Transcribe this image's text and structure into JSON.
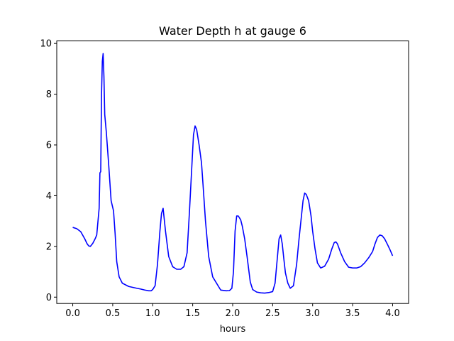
{
  "chart_data": {
    "type": "line",
    "title": "Water Depth h at gauge 6",
    "xlabel": "hours",
    "ylabel": "",
    "xlim": [
      -0.2,
      4.2
    ],
    "ylim": [
      -0.25,
      10.1
    ],
    "xticks": [
      0.0,
      0.5,
      1.0,
      1.5,
      2.0,
      2.5,
      3.0,
      3.5,
      4.0
    ],
    "xtick_labels": [
      "0.0",
      "0.5",
      "1.0",
      "1.5",
      "2.0",
      "2.5",
      "3.0",
      "3.5",
      "4.0"
    ],
    "yticks": [
      0,
      2,
      4,
      6,
      8,
      10
    ],
    "ytick_labels": [
      "0",
      "2",
      "4",
      "6",
      "8",
      "10"
    ],
    "grid": false,
    "series": [
      {
        "color": "#0000ff",
        "x": [
          0.0,
          0.05,
          0.1,
          0.15,
          0.18,
          0.2,
          0.22,
          0.25,
          0.28,
          0.3,
          0.33,
          0.34,
          0.35,
          0.36,
          0.37,
          0.38,
          0.39,
          0.4,
          0.42,
          0.45,
          0.48,
          0.51,
          0.53,
          0.55,
          0.58,
          0.62,
          0.7,
          0.8,
          0.85,
          0.9,
          0.95,
          0.98,
          1.0,
          1.03,
          1.06,
          1.09,
          1.11,
          1.13,
          1.16,
          1.2,
          1.25,
          1.3,
          1.35,
          1.39,
          1.43,
          1.46,
          1.49,
          1.51,
          1.53,
          1.55,
          1.58,
          1.61,
          1.63,
          1.66,
          1.7,
          1.75,
          1.85,
          1.92,
          1.96,
          1.99,
          2.01,
          2.03,
          2.05,
          2.07,
          2.1,
          2.12,
          2.15,
          2.18,
          2.2,
          2.22,
          2.25,
          2.3,
          2.35,
          2.4,
          2.45,
          2.5,
          2.53,
          2.56,
          2.58,
          2.6,
          2.62,
          2.64,
          2.66,
          2.69,
          2.72,
          2.76,
          2.8,
          2.83,
          2.86,
          2.88,
          2.9,
          2.92,
          2.95,
          2.98,
          3.0,
          3.03,
          3.06,
          3.1,
          3.15,
          3.2,
          3.24,
          3.27,
          3.29,
          3.31,
          3.35,
          3.4,
          3.45,
          3.5,
          3.55,
          3.6,
          3.65,
          3.7,
          3.75,
          3.78,
          3.81,
          3.84,
          3.87,
          3.9,
          3.94,
          3.97,
          4.0
        ],
        "values": [
          2.75,
          2.7,
          2.58,
          2.3,
          2.1,
          2.02,
          2.0,
          2.12,
          2.3,
          2.45,
          3.5,
          4.9,
          4.95,
          8.0,
          9.3,
          9.6,
          8.7,
          7.2,
          6.5,
          5.2,
          3.8,
          3.4,
          2.5,
          1.4,
          0.8,
          0.55,
          0.42,
          0.35,
          0.32,
          0.28,
          0.25,
          0.25,
          0.3,
          0.45,
          1.3,
          2.6,
          3.3,
          3.5,
          2.6,
          1.6,
          1.2,
          1.1,
          1.1,
          1.2,
          1.75,
          3.4,
          5.2,
          6.4,
          6.75,
          6.6,
          6.0,
          5.3,
          4.4,
          3.0,
          1.6,
          0.8,
          0.28,
          0.25,
          0.26,
          0.35,
          1.0,
          2.6,
          3.2,
          3.2,
          3.05,
          2.8,
          2.3,
          1.6,
          1.1,
          0.6,
          0.3,
          0.2,
          0.17,
          0.16,
          0.18,
          0.22,
          0.55,
          1.6,
          2.3,
          2.45,
          2.1,
          1.5,
          0.95,
          0.55,
          0.35,
          0.45,
          1.3,
          2.3,
          3.2,
          3.8,
          4.1,
          4.05,
          3.8,
          3.2,
          2.6,
          1.9,
          1.35,
          1.15,
          1.22,
          1.5,
          1.9,
          2.15,
          2.18,
          2.1,
          1.75,
          1.4,
          1.18,
          1.15,
          1.15,
          1.2,
          1.35,
          1.55,
          1.8,
          2.1,
          2.35,
          2.45,
          2.42,
          2.3,
          2.05,
          1.85,
          1.63
        ]
      }
    ]
  }
}
